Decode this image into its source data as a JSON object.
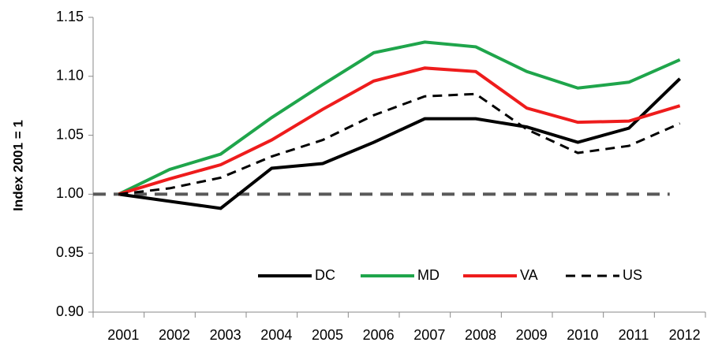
{
  "chart_data": {
    "type": "line",
    "y_label": "Index 2001 = 1",
    "categories": [
      "2001",
      "2002",
      "2003",
      "2004",
      "2005",
      "2006",
      "2007",
      "2008",
      "2009",
      "2010",
      "2011",
      "2012"
    ],
    "series": [
      {
        "name": "DC",
        "color": "#000000",
        "dash": false,
        "values": [
          1.0,
          0.994,
          0.988,
          1.022,
          1.026,
          1.044,
          1.064,
          1.064,
          1.057,
          1.044,
          1.056,
          1.098
        ]
      },
      {
        "name": "MD",
        "color": "#1fa54b",
        "dash": false,
        "values": [
          1.0,
          1.021,
          1.034,
          1.065,
          1.093,
          1.12,
          1.129,
          1.125,
          1.104,
          1.09,
          1.095,
          1.114
        ]
      },
      {
        "name": "VA",
        "color": "#ee1c1c",
        "dash": false,
        "values": [
          1.0,
          1.013,
          1.025,
          1.046,
          1.072,
          1.096,
          1.107,
          1.104,
          1.073,
          1.061,
          1.062,
          1.075
        ]
      },
      {
        "name": "US",
        "color": "#000000",
        "dash": true,
        "values": [
          1.0,
          1.005,
          1.014,
          1.032,
          1.046,
          1.067,
          1.083,
          1.085,
          1.055,
          1.035,
          1.041,
          1.06
        ]
      }
    ],
    "reference_line": 1,
    "ylim": [
      0.9,
      1.15
    ],
    "yticks": [
      {
        "value": 0.9,
        "label": "0.90"
      },
      0.95,
      {
        "value": 1,
        "label": "1.00"
      },
      1.05,
      {
        "value": 1.1,
        "label": "1.10"
      },
      1.15
    ],
    "grid": false
  }
}
